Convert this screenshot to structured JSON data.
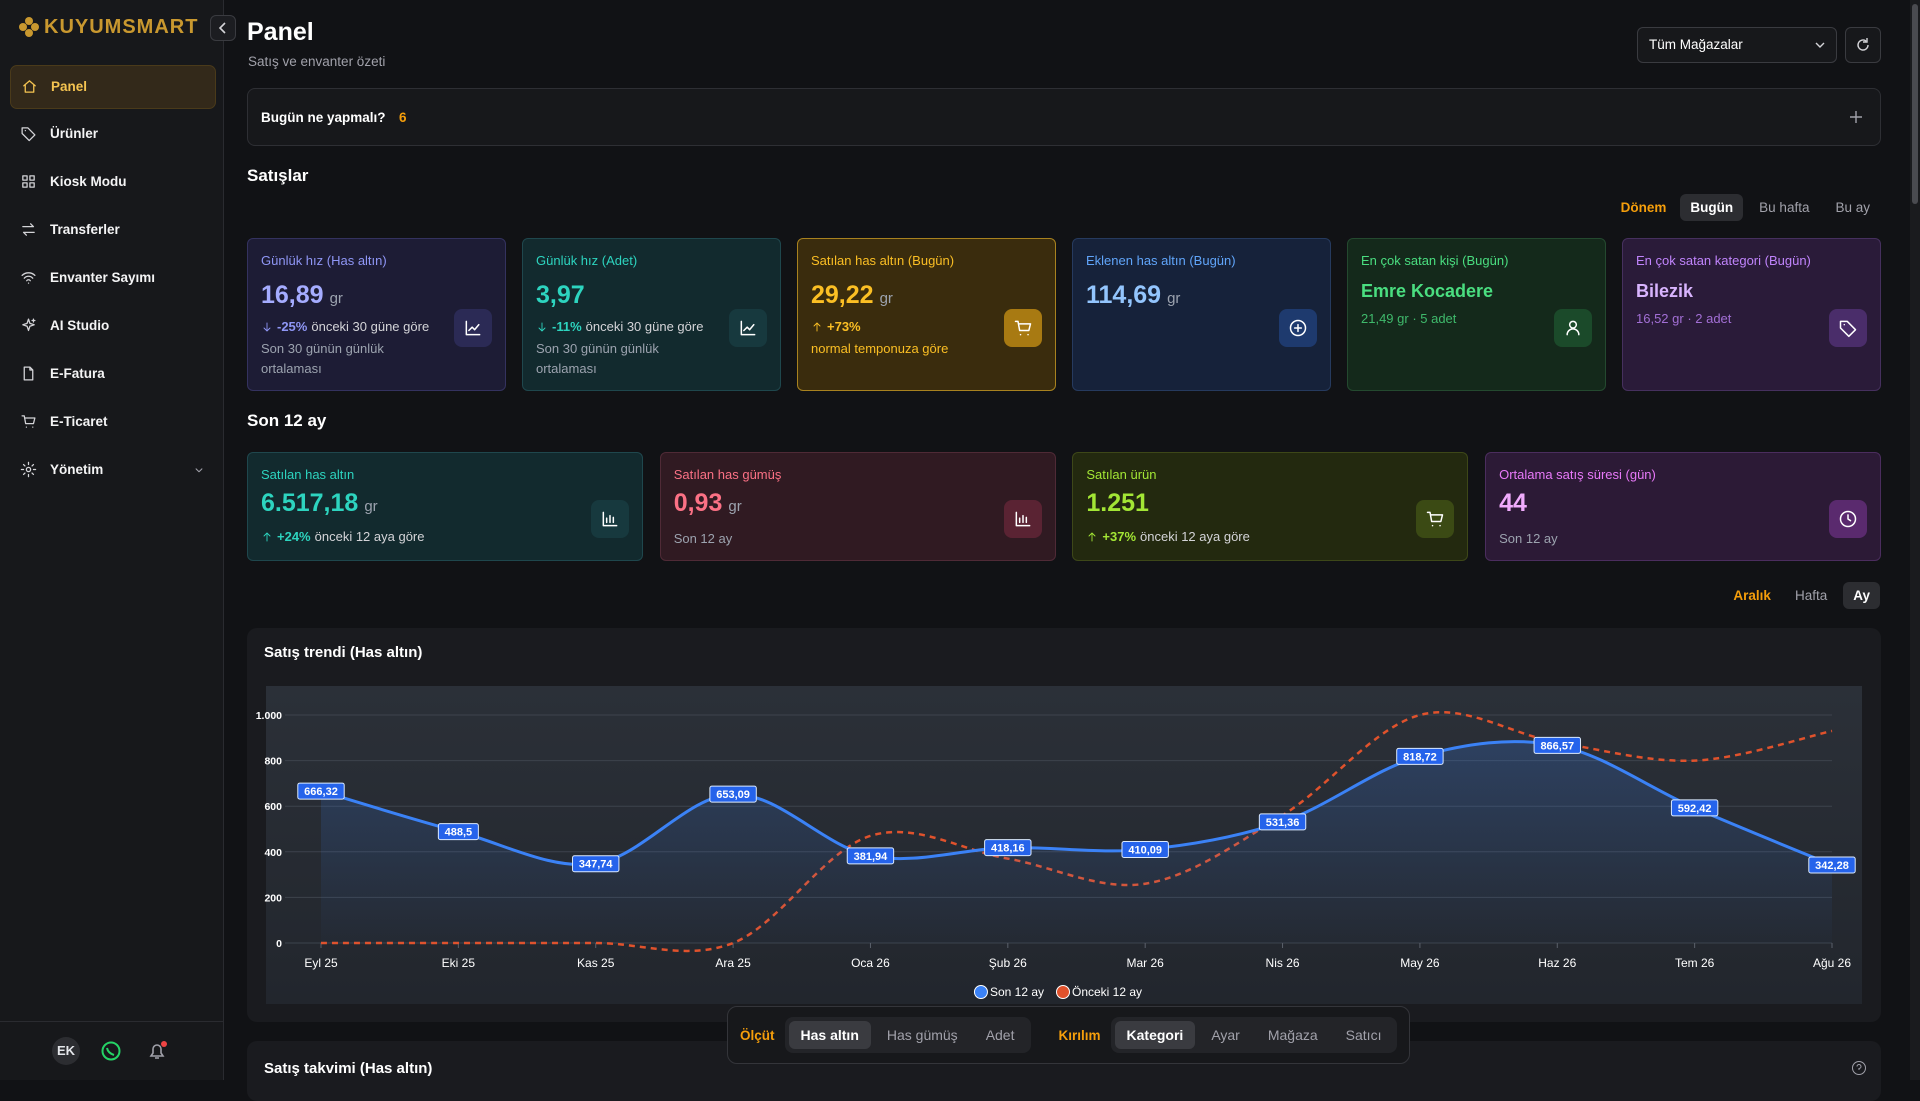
{
  "sidebar": {
    "brand": "KUYUMSMART",
    "nav": [
      "Panel",
      "Ürünler",
      "Kiosk Modu",
      "Transferler",
      "Envanter Sayımı",
      "AI Studio",
      "E-Fatura",
      "E-Ticaret",
      "Yönetim"
    ],
    "user_initials": "EK"
  },
  "header": {
    "title": "Panel",
    "subtitle": "Satış ve envanter özeti",
    "store_select": "Tüm Mağazalar"
  },
  "todo": {
    "label": "Bugün ne yapmalı?",
    "count": 6
  },
  "sales": {
    "title": "Satışlar",
    "period_label": "Dönem",
    "periods": [
      "Bugün",
      "Bu hafta",
      "Bu ay"
    ],
    "cards": [
      {
        "title": "Günlük hız (Has altın)",
        "value": "16,89",
        "unit": "gr",
        "change": "-25%",
        "change_text": "önceki 30 güne göre",
        "note": "Son 30 günün günlük ortalaması"
      },
      {
        "title": "Günlük hız (Adet)",
        "value": "3,97",
        "change": "-11%",
        "change_text": "önceki 30 güne göre",
        "note": "Son 30 günün günlük ortalaması"
      },
      {
        "title": "Satılan has altın (Bugün)",
        "value": "29,22",
        "unit": "gr",
        "change": "+73%",
        "note": "normal temponuza göre"
      },
      {
        "title": "Eklenen has altın (Bugün)",
        "value": "114,69",
        "unit": "gr"
      },
      {
        "title": "En çok satan kişi (Bugün)",
        "value": "Emre Kocadere",
        "detail": "21,49 gr · 5 adet"
      },
      {
        "title": "En çok satan kategori (Bugün)",
        "value": "Bilezik",
        "detail": "16,52 gr · 2 adet"
      }
    ]
  },
  "last12": {
    "title": "Son 12 ay",
    "cards": [
      {
        "title": "Satılan has altın",
        "value": "6.517,18",
        "unit": "gr",
        "change": "+24%",
        "change_text": "önceki 12 aya göre"
      },
      {
        "title": "Satılan has gümüş",
        "value": "0,93",
        "unit": "gr",
        "note": "Son 12 ay"
      },
      {
        "title": "Satılan ürün",
        "value": "1.251",
        "change": "+37%",
        "change_text": "önceki 12 aya göre"
      },
      {
        "title": "Ortalama satış süresi (gün)",
        "value": "44",
        "note": "Son 12 ay"
      }
    ]
  },
  "trend_controls": {
    "label": "Aralık",
    "options": [
      "Hafta",
      "Ay"
    ]
  },
  "chart_data": {
    "type": "line",
    "title": "Satış trendi (Has altın)",
    "categories": [
      "Eyl 25",
      "Eki 25",
      "Kas 25",
      "Ara 25",
      "Oca 26",
      "Şub 26",
      "Mar 26",
      "Nis 26",
      "May 26",
      "Haz 26",
      "Tem 26",
      "Ağu 26"
    ],
    "series": [
      {
        "name": "Son 12 ay",
        "color": "#3b82f6",
        "values": [
          666.32,
          488.5,
          347.74,
          653.09,
          381.94,
          418.16,
          410.09,
          531.36,
          818.72,
          866.57,
          592.42,
          342.28
        ],
        "value_labels": [
          "666,32",
          "488,5",
          "347,74",
          "653,09",
          "381,94",
          "418,16",
          "410,09",
          "531,36",
          "818,72",
          "866,57",
          "592,42",
          "342,28"
        ]
      },
      {
        "name": "Önceki 12 ay",
        "color": "#e0522c",
        "dashed": true,
        "values": [
          0,
          0,
          0,
          0,
          470,
          370,
          260,
          560,
          1000,
          880,
          800,
          930
        ]
      }
    ],
    "ylim": [
      0,
      1000
    ],
    "yticks": [
      0,
      200,
      400,
      600,
      800,
      {
        "value": 1000,
        "label": "1.000"
      }
    ],
    "grid": true,
    "legend": "bottom"
  },
  "toolbar": {
    "measure_label": "Ölçüt",
    "measures": [
      "Has altın",
      "Has gümüş",
      "Adet"
    ],
    "breakdown_label": "Kırılım",
    "breakdowns": [
      "Kategori",
      "Ayar",
      "Mağaza",
      "Satıcı"
    ]
  },
  "calendar": {
    "title": "Satış takvimi (Has altın)"
  }
}
